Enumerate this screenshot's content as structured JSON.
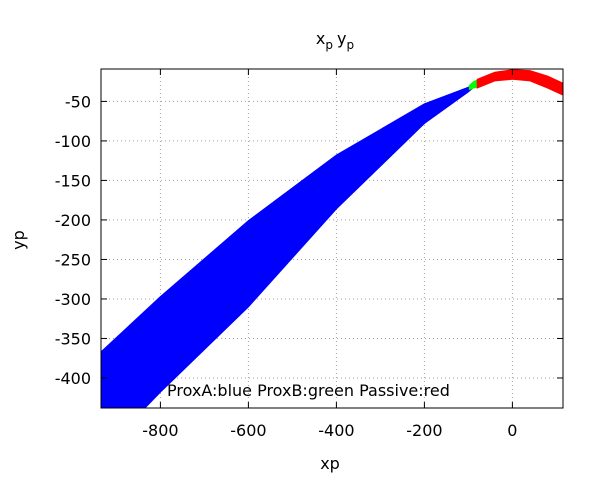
{
  "chart_data": {
    "type": "area",
    "title": {
      "base1": "x",
      "sub1": "p",
      "base2": "y",
      "sub2": "p"
    },
    "xlabel": "xp",
    "ylabel": "yp",
    "xlim": [
      -935,
      115
    ],
    "ylim": [
      -438,
      -9
    ],
    "xticks": [
      -800,
      -600,
      -400,
      -200,
      0
    ],
    "yticks": [
      -50,
      -100,
      -150,
      -200,
      -250,
      -300,
      -350,
      -400
    ],
    "grid": true,
    "legend_text": "ProxA:blue ProxB:green Passive:red",
    "series": [
      {
        "color": "#0000ff",
        "upper": [
          [
            -935,
            -367
          ],
          [
            -800,
            -297
          ],
          [
            -600,
            -201
          ],
          [
            -400,
            -118
          ],
          [
            -200,
            -53
          ],
          [
            -100,
            -32
          ],
          [
            -88,
            -28
          ]
        ],
        "lower": [
          [
            -88,
            -32
          ],
          [
            -100,
            -38
          ],
          [
            -200,
            -78
          ],
          [
            -400,
            -186
          ],
          [
            -600,
            -310
          ],
          [
            -800,
            -418
          ],
          [
            -835,
            -438
          ],
          [
            -935,
            -438
          ]
        ]
      },
      {
        "color": "#00ff00",
        "upper": [
          [
            -98,
            -30
          ],
          [
            -88,
            -25
          ],
          [
            -80,
            -23
          ]
        ],
        "lower": [
          [
            -80,
            -32
          ],
          [
            -88,
            -33
          ],
          [
            -98,
            -35
          ]
        ]
      },
      {
        "color": "#ff0000",
        "upper": [
          [
            -80,
            -22
          ],
          [
            -40,
            -13
          ],
          [
            0,
            -10
          ],
          [
            40,
            -11
          ],
          [
            80,
            -18
          ],
          [
            115,
            -27
          ]
        ],
        "lower": [
          [
            115,
            -42
          ],
          [
            80,
            -33
          ],
          [
            40,
            -24
          ],
          [
            0,
            -22
          ],
          [
            -40,
            -24
          ],
          [
            -80,
            -33
          ]
        ]
      }
    ]
  }
}
